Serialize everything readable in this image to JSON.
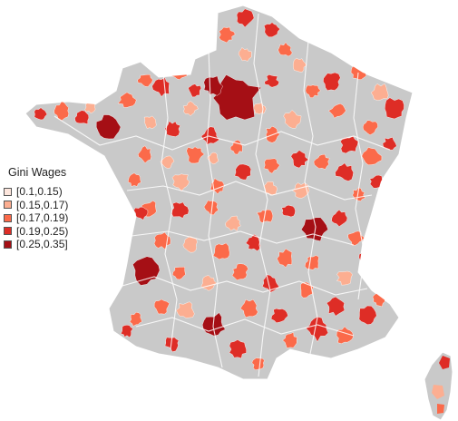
{
  "legend": {
    "title": "Gini Wages",
    "classes": [
      {
        "label": "[0.1,0.15)",
        "color": "#fde6dd"
      },
      {
        "label": "[0.15,0.17)",
        "color": "#fcae91"
      },
      {
        "label": "[0.17,0.19)",
        "color": "#fb6a4a"
      },
      {
        "label": "[0.19,0.25)",
        "color": "#de2d26"
      },
      {
        "label": "[0.25,0.35]",
        "color": "#a50f15"
      }
    ]
  },
  "colors": {
    "background": "#ffffff",
    "no_class_fill": "#c9c9c9",
    "border": "#ffffff"
  }
}
